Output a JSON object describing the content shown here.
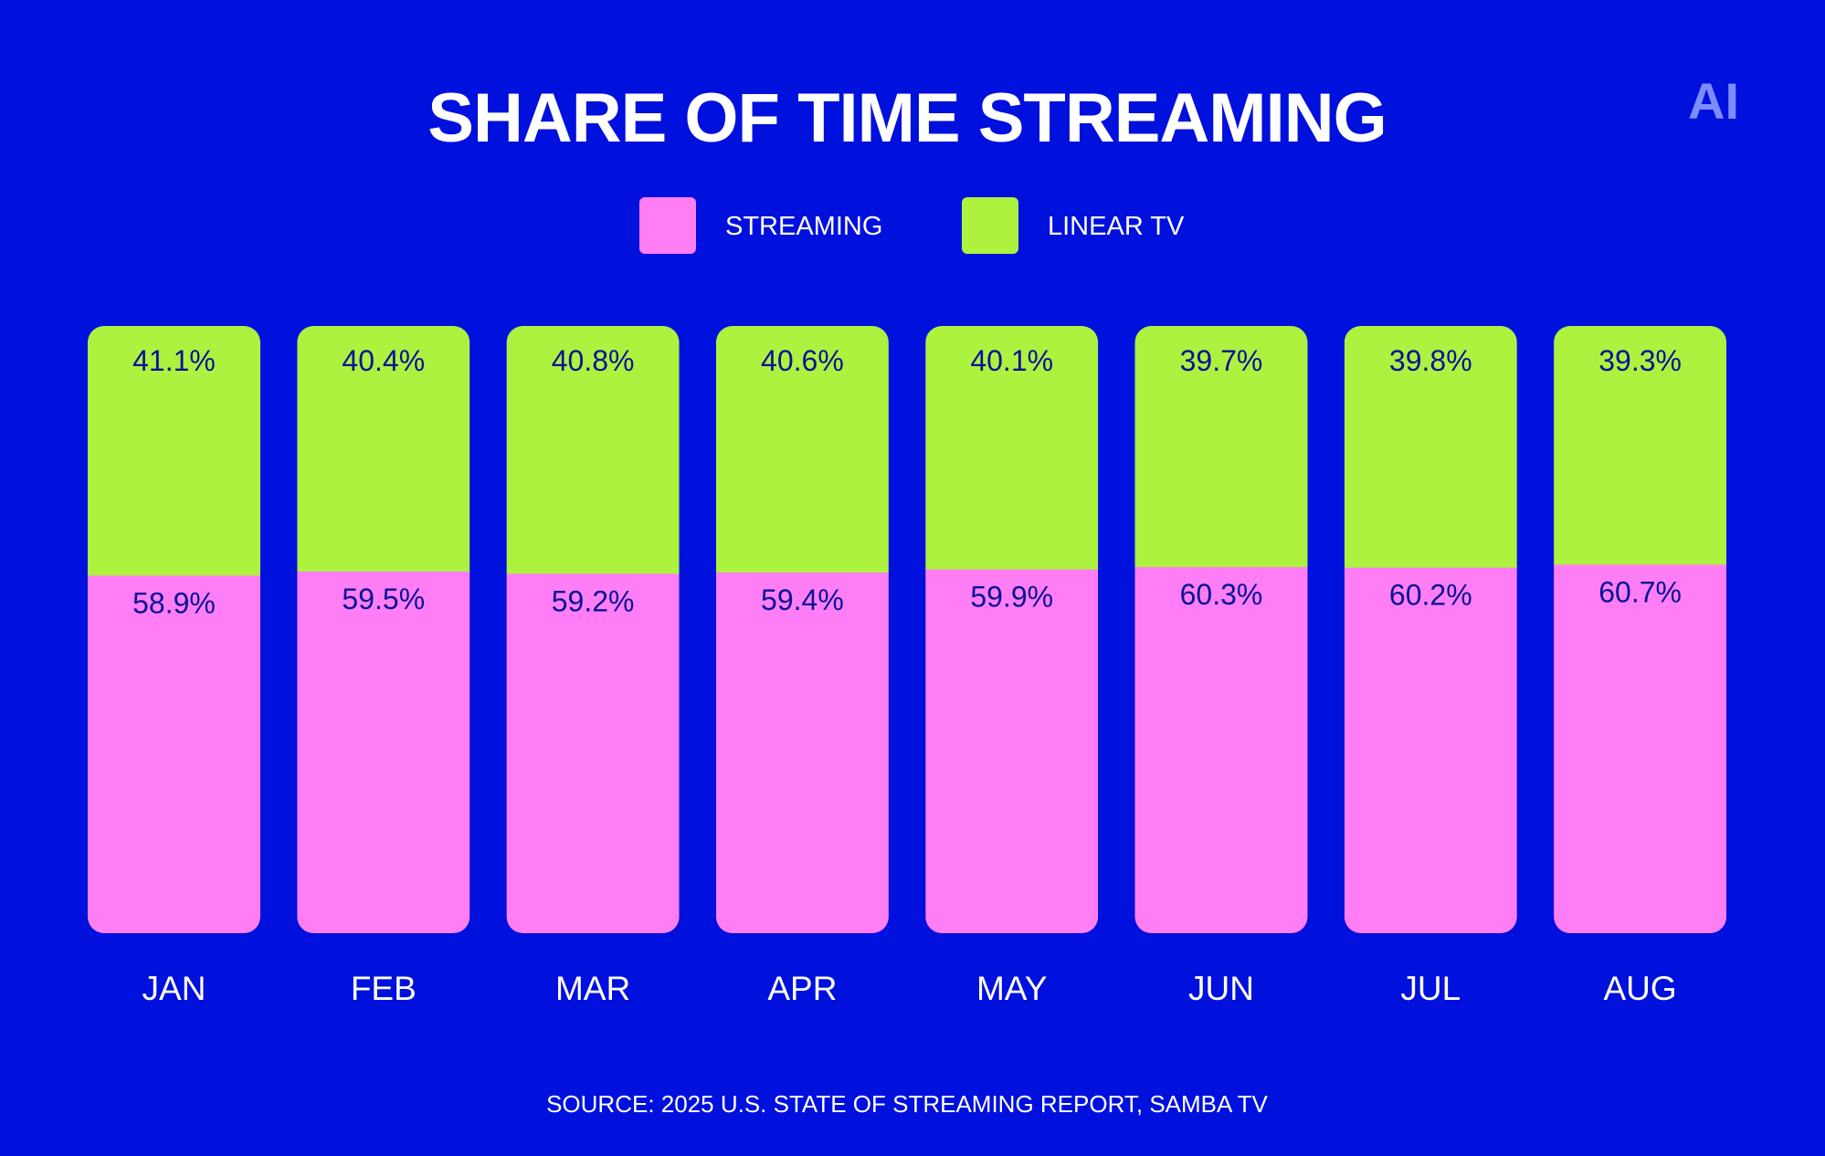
{
  "chart_data": {
    "type": "bar",
    "stacked": true,
    "title": "SHARE OF TIME STREAMING",
    "categories": [
      "JAN",
      "FEB",
      "MAR",
      "APR",
      "MAY",
      "JUN",
      "JUL",
      "AUG"
    ],
    "series": [
      {
        "name": "STREAMING",
        "color": "#ff7ef5",
        "values": [
          58.9,
          59.5,
          59.2,
          59.4,
          59.9,
          60.3,
          60.2,
          60.7
        ],
        "labels": [
          "58.9%",
          "59.5%",
          "59.2%",
          "59.4%",
          "59.9%",
          "60.3%",
          "60.2%",
          "60.7%"
        ]
      },
      {
        "name": "LINEAR TV",
        "color": "#adf23f",
        "values": [
          41.1,
          40.4,
          40.8,
          40.6,
          40.1,
          39.7,
          39.8,
          39.3
        ],
        "labels": [
          "41.1%",
          "40.4%",
          "40.8%",
          "40.6%",
          "40.1%",
          "39.7%",
          "39.8%",
          "39.3%"
        ]
      }
    ],
    "ylim": [
      0,
      100
    ],
    "xlabel": "",
    "ylabel": "",
    "grid": false,
    "legend_position": "top-center"
  },
  "source": "SOURCE: 2025 U.S. STATE OF STREAMING REPORT, SAMBA TV",
  "logo": "AI",
  "colors": {
    "background": "#0010dd",
    "text": "#ffffff",
    "value_label": "#0a1296",
    "logo": "#7d8cff"
  }
}
